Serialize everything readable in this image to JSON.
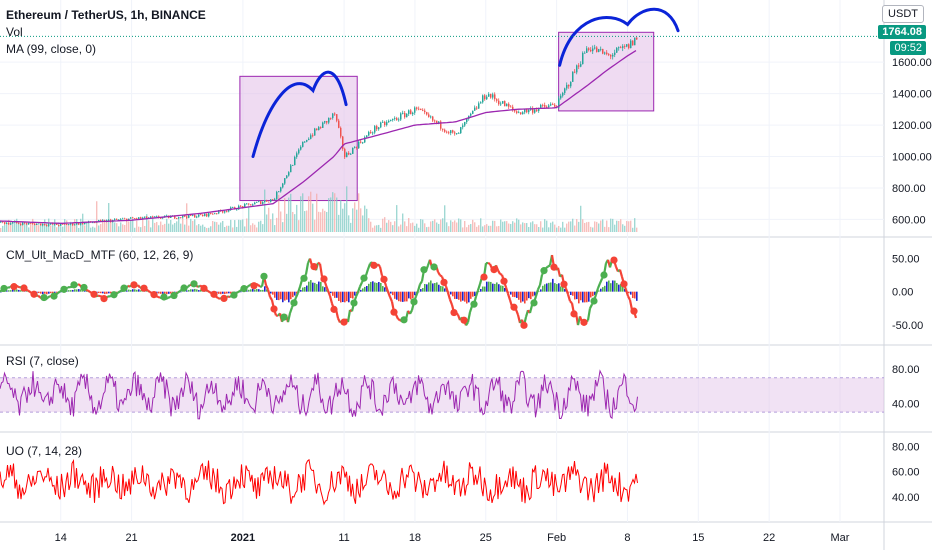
{
  "header": {
    "title": "Ethereum / TetherUS, 1h, BINANCE",
    "vol": "Vol",
    "ma": "MA (99, close, 0)",
    "currency": "USDT",
    "last_price": "1764.08",
    "countdown": "09:52"
  },
  "colors": {
    "up": "#26a69a",
    "down": "#ef5350",
    "ma": "#9c27b0",
    "box_fill": "#e1bee7",
    "box_stroke": "#9c27b0",
    "annotation": "#0b24d8",
    "price_tag": "#089981",
    "rsi": "#9c27b0",
    "uo": "#ff0000",
    "macd_green": "#4caf50",
    "macd_red": "#f44336",
    "macd_blue": "#1e22cc"
  },
  "chart_data": [
    {
      "type": "line",
      "name": "price",
      "y_ticks": [
        "1600.00",
        "1400.00",
        "1200.00",
        "1000.00",
        "800.00",
        "600.00"
      ],
      "ylim": [
        520,
        1900
      ],
      "x_ticks": [
        "14",
        "21",
        "2021",
        "11",
        "18",
        "25",
        "Feb",
        "8",
        "15",
        "22",
        "Mar"
      ],
      "x": [
        "2020-12-08",
        "2020-12-14",
        "2020-12-21",
        "2020-12-28",
        "2021-01-04",
        "2021-01-07",
        "2021-01-10",
        "2021-01-11",
        "2021-01-14",
        "2021-01-18",
        "2021-01-22",
        "2021-01-25",
        "2021-01-28",
        "2021-02-01",
        "2021-02-04",
        "2021-02-06",
        "2021-02-08",
        "2021-02-09"
      ],
      "values": [
        580,
        565,
        605,
        625,
        730,
        1100,
        1270,
        1000,
        1180,
        1300,
        1130,
        1400,
        1280,
        1330,
        1700,
        1640,
        1700,
        1764
      ],
      "ma_values": [
        590,
        575,
        595,
        640,
        700,
        840,
        1000,
        1080,
        1130,
        1200,
        1220,
        1280,
        1300,
        1310,
        1450,
        1550,
        1640,
        1680
      ],
      "volume_note": "Vol"
    },
    {
      "type": "bar",
      "name": "CM_Ult_MacD_MTF (60, 12, 26, 9)",
      "y_ticks": [
        "50.00",
        "0.00",
        "-50.00"
      ],
      "ylim": [
        -65,
        70
      ]
    },
    {
      "type": "line",
      "name": "RSI (7, close)",
      "y_ticks": [
        "80.00",
        "40.00"
      ],
      "ylim": [
        15,
        100
      ],
      "band": [
        30,
        70
      ]
    },
    {
      "type": "line",
      "name": "UO (7, 14, 28)",
      "y_ticks": [
        "80.00",
        "60.00",
        "40.00"
      ],
      "ylim": [
        25,
        85
      ]
    }
  ],
  "indicators": {
    "macd_label": "CM_Ult_MacD_MTF (60, 12, 26, 9)",
    "rsi_label": "RSI (7, close)",
    "uo_label": "UO (7, 14, 28)"
  }
}
